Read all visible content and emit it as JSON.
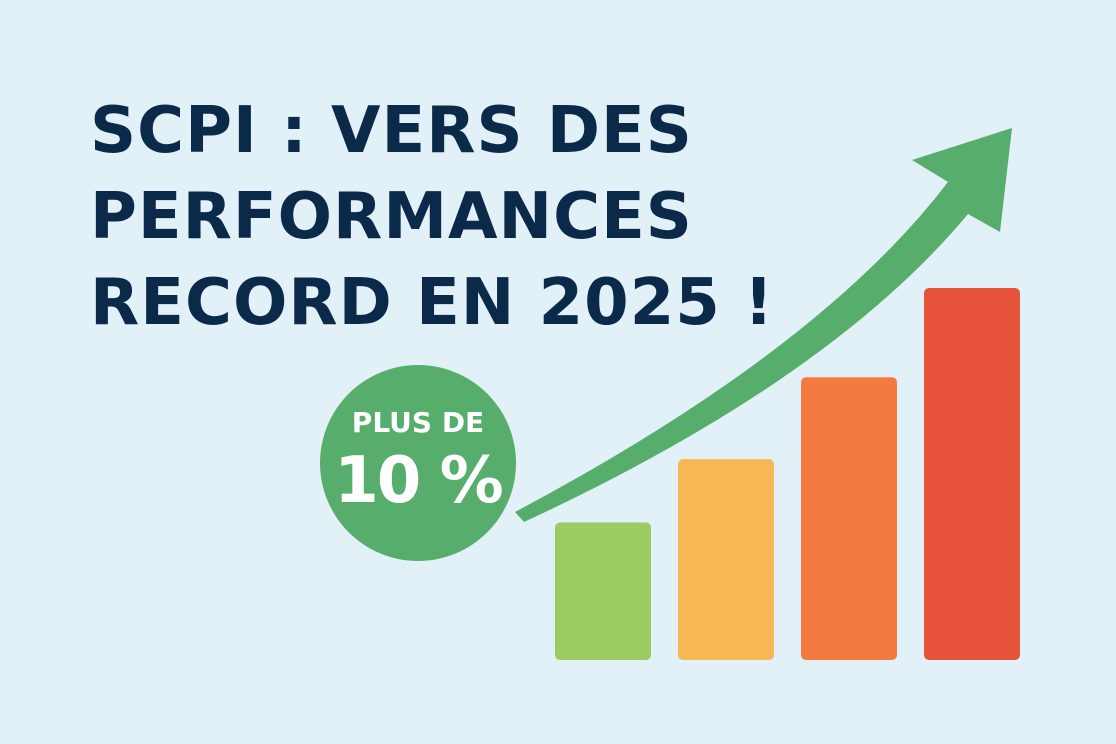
{
  "headline": {
    "line1": "SCPI : VERS DES",
    "line2": "PERFORMANCES",
    "line3": "RECORD EN 2025 !"
  },
  "badge": {
    "top": "PLUS DE",
    "main": "10 %"
  },
  "colors": {
    "background": "#e2f0f8",
    "headline": "#0b2a4a",
    "badge": "#57ae6c",
    "arrow": "#57ae6c"
  },
  "chart_data": {
    "type": "bar",
    "categories": [
      "",
      "",
      "",
      ""
    ],
    "values": [
      37,
      54,
      76,
      100
    ],
    "ylim": [
      0,
      100
    ],
    "colors": [
      "#9ccb64",
      "#f8b754",
      "#f57a40",
      "#e6533a"
    ],
    "grid": false,
    "trend_arrow": "up"
  }
}
